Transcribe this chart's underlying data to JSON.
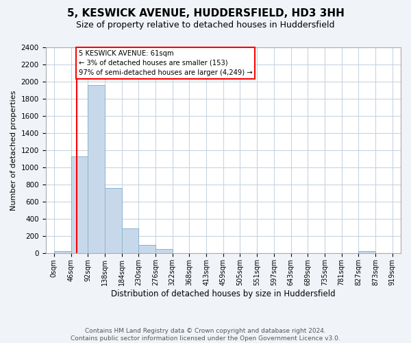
{
  "title": "5, KESWICK AVENUE, HUDDERSFIELD, HD3 3HH",
  "subtitle": "Size of property relative to detached houses in Huddersfield",
  "xlabel": "Distribution of detached houses by size in Huddersfield",
  "ylabel": "Number of detached properties",
  "bin_labels": [
    "0sqm",
    "46sqm",
    "92sqm",
    "138sqm",
    "184sqm",
    "230sqm",
    "276sqm",
    "322sqm",
    "368sqm",
    "413sqm",
    "459sqm",
    "505sqm",
    "551sqm",
    "597sqm",
    "643sqm",
    "689sqm",
    "735sqm",
    "781sqm",
    "827sqm",
    "873sqm",
    "919sqm"
  ],
  "bar_heights": [
    30,
    1130,
    1960,
    760,
    295,
    100,
    50,
    0,
    0,
    0,
    0,
    0,
    0,
    0,
    0,
    0,
    0,
    0,
    30,
    0,
    0
  ],
  "bar_color": "#c8d8eb",
  "bar_edgecolor": "#8ab4cc",
  "red_line_x": 1.33,
  "annotation_text": "5 KESWICK AVENUE: 61sqm\n← 3% of detached houses are smaller (153)\n97% of semi-detached houses are larger (4,249) →",
  "annotation_box_color": "white",
  "annotation_box_edgecolor": "red",
  "red_line_color": "red",
  "ylim": [
    0,
    2400
  ],
  "yticks": [
    0,
    200,
    400,
    600,
    800,
    1000,
    1200,
    1400,
    1600,
    1800,
    2000,
    2200,
    2400
  ],
  "footer": "Contains HM Land Registry data © Crown copyright and database right 2024.\nContains public sector information licensed under the Open Government Licence v3.0.",
  "bg_color": "#f0f4f8",
  "plot_bg_color": "white",
  "grid_color": "#c8d4e0",
  "title_fontsize": 11,
  "subtitle_fontsize": 9,
  "xlabel_fontsize": 8.5,
  "ylabel_fontsize": 8,
  "tick_fontsize": 7.5,
  "xtick_fontsize": 7,
  "footer_fontsize": 6.5
}
